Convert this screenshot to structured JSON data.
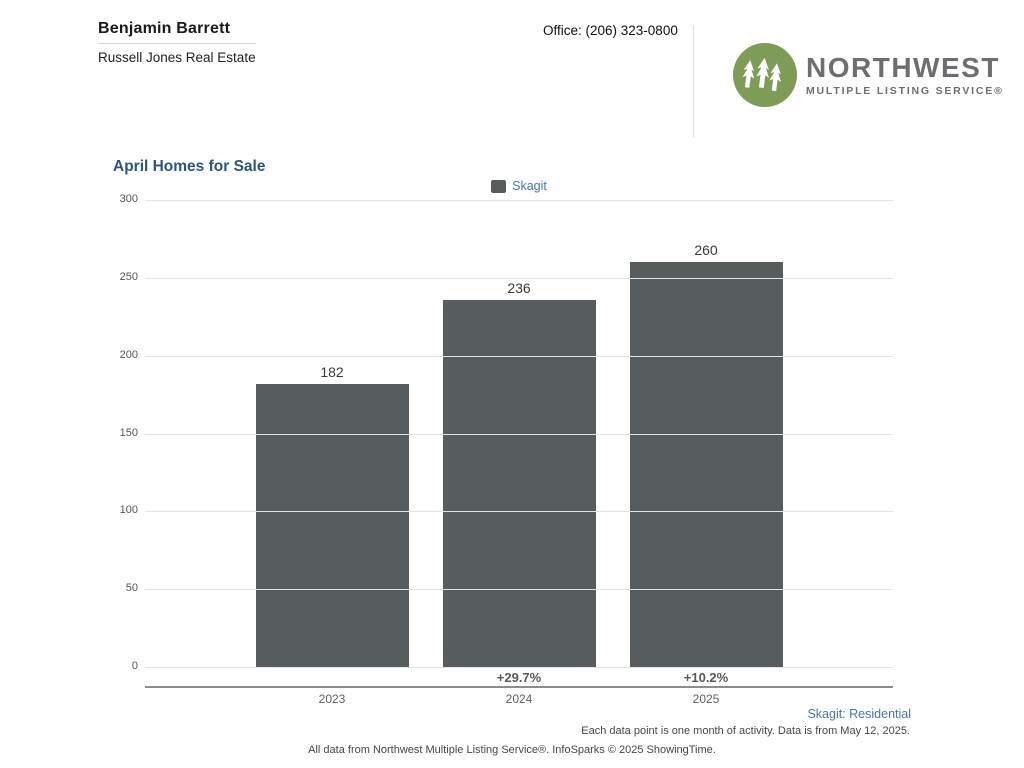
{
  "header": {
    "agent_name": "Benjamin Barrett",
    "agency": "Russell Jones Real Estate",
    "office_phone": "Office: (206) 323-0800",
    "logo": {
      "icon": "evergreen-trees-icon",
      "circle_color": "#7e9c58",
      "text_color": "#6d6e71",
      "brand_top": "NORTHWEST",
      "brand_bottom": "MULTIPLE LISTING SERVICE®"
    }
  },
  "chart": {
    "title": "April Homes for Sale",
    "legend": [
      {
        "label": "Skagit",
        "color": "#575c5e"
      }
    ]
  },
  "chart_data": {
    "type": "bar",
    "title": "April Homes for Sale",
    "categories": [
      "2023",
      "2024",
      "2025"
    ],
    "series": [
      {
        "name": "Skagit",
        "color": "#575c5e",
        "values": [
          182,
          236,
          260
        ]
      }
    ],
    "value_labels": [
      "182",
      "236",
      "260"
    ],
    "pct_change_labels": [
      "",
      "+29.7%",
      "+10.2%"
    ],
    "yticks": [
      300,
      250,
      200,
      150,
      100,
      50,
      0
    ],
    "ylim": [
      0,
      300
    ],
    "xlabel": "",
    "ylabel": "",
    "grid": true,
    "legend_position": "top-center"
  },
  "footer": {
    "region_note": "Skagit: Residential",
    "data_note": "Each data point is one month of activity. Data is from May 12, 2025.",
    "attribution": "All data from Northwest Multiple Listing Service®. InfoSparks © 2025 ShowingTime."
  }
}
